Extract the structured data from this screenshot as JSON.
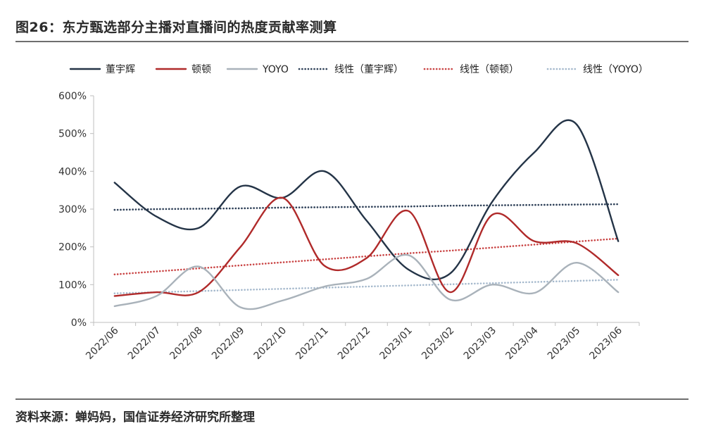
{
  "figure": {
    "title": "图26：东方甄选部分主播对直播间的热度贡献率测算",
    "source": "资料来源：蝉妈妈，国信证券经济研究所整理"
  },
  "chart_data": {
    "type": "line",
    "categories": [
      "2022/06",
      "2022/07",
      "2022/08",
      "2022/09",
      "2022/10",
      "2022/11",
      "2022/12",
      "2023/01",
      "2023/02",
      "2023/03",
      "2023/04",
      "2023/05",
      "2023/06"
    ],
    "ylim": [
      0,
      600
    ],
    "yticks": [
      0,
      100,
      200,
      300,
      400,
      500,
      600
    ],
    "ytick_labels": [
      "0%",
      "100%",
      "200%",
      "300%",
      "400%",
      "500%",
      "600%"
    ],
    "unit": "%",
    "legend_position": "top",
    "series": [
      {
        "name": "董宇辉",
        "color": "#243447",
        "style": "solid",
        "smooth": true,
        "values": [
          370,
          280,
          250,
          360,
          330,
          400,
          270,
          140,
          130,
          320,
          450,
          525,
          215
        ]
      },
      {
        "name": "顿顿",
        "color": "#b02a2a",
        "style": "solid",
        "smooth": true,
        "values": [
          70,
          80,
          80,
          200,
          330,
          150,
          170,
          295,
          80,
          285,
          215,
          210,
          125
        ]
      },
      {
        "name": "YOYO",
        "color": "#a9b2ba",
        "style": "solid",
        "smooth": true,
        "values": [
          43,
          70,
          148,
          40,
          58,
          95,
          115,
          178,
          60,
          100,
          78,
          158,
          80
        ]
      },
      {
        "name": "线性（董宇辉）",
        "color": "#2d3f57",
        "style": "dotted",
        "smooth": false,
        "values": [
          298,
          300,
          301,
          302,
          304,
          305,
          306,
          307,
          309,
          310,
          311,
          312,
          313
        ]
      },
      {
        "name": "线性（顿顿）",
        "color": "#c94343",
        "style": "dotted",
        "smooth": false,
        "values": [
          127,
          135,
          143,
          151,
          159,
          167,
          175,
          183,
          190,
          198,
          206,
          214,
          222
        ]
      },
      {
        "name": "线性（YOYO）",
        "color": "#a4b8cc",
        "style": "dotted",
        "smooth": false,
        "values": [
          77,
          80,
          83,
          86,
          89,
          92,
          95,
          98,
          101,
          104,
          107,
          110,
          113
        ]
      }
    ]
  }
}
